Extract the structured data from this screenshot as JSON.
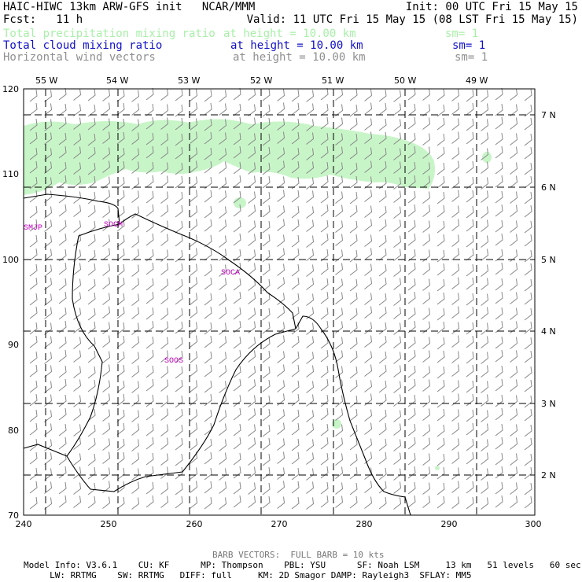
{
  "header": {
    "line1_left": "HAIC-HIWC 13km ARW-GFS init   NCAR/MMM",
    "line1_right": "Init: 00 UTC Fri 15 May 15",
    "line2_left": "Fcst:   11 h",
    "line2_right": "Valid: 11 UTC Fri 15 May 15 (08 LST Fri 15 May 15)"
  },
  "fields": [
    {
      "name": "Total precipitation mixing ratio",
      "height": "at height = 10.00 km",
      "sm": "sm= 1",
      "color": "#a8f0a8"
    },
    {
      "name": "Total cloud mixing ratio",
      "height": "at height = 10.00 km",
      "sm": "sm= 1",
      "color": "#1010c8"
    },
    {
      "name": "Horizontal wind vectors",
      "height": "at height = 10.00 km",
      "sm": "sm= 1",
      "color": "#909090"
    }
  ],
  "map": {
    "lon_labels": [
      "55 W",
      "54 W",
      "53 W",
      "52 W",
      "51 W",
      "50 W",
      "49 W"
    ],
    "lat_labels": [
      "7 N",
      "6 N",
      "5 N",
      "4 N",
      "3 N",
      "2 N"
    ],
    "x_ticks": [
      "240",
      "250",
      "260",
      "270",
      "280",
      "290",
      "300"
    ],
    "y_ticks": [
      "120",
      "110",
      "100",
      "90",
      "80",
      "70"
    ],
    "region_labels": [
      "SMJP",
      "SOCM",
      "SOCA",
      "SOOS"
    ],
    "precip_color": "#c8f5c8",
    "label_color": "#c000c0"
  },
  "footer": {
    "barb": "BARB VECTORS:  FULL BARB = 10 kts",
    "info1": "Model Info: V3.6.1    CU: KF      MP: Thompson    PBL: YSU      SF: Noah LSM     13 km   51 levels   60 sec",
    "info2": "     LW: RRTMG    SW: RRTMG   DIFF: full     KM: 2D Smagor DAMP: Rayleigh3  SFLAY: MM5"
  }
}
